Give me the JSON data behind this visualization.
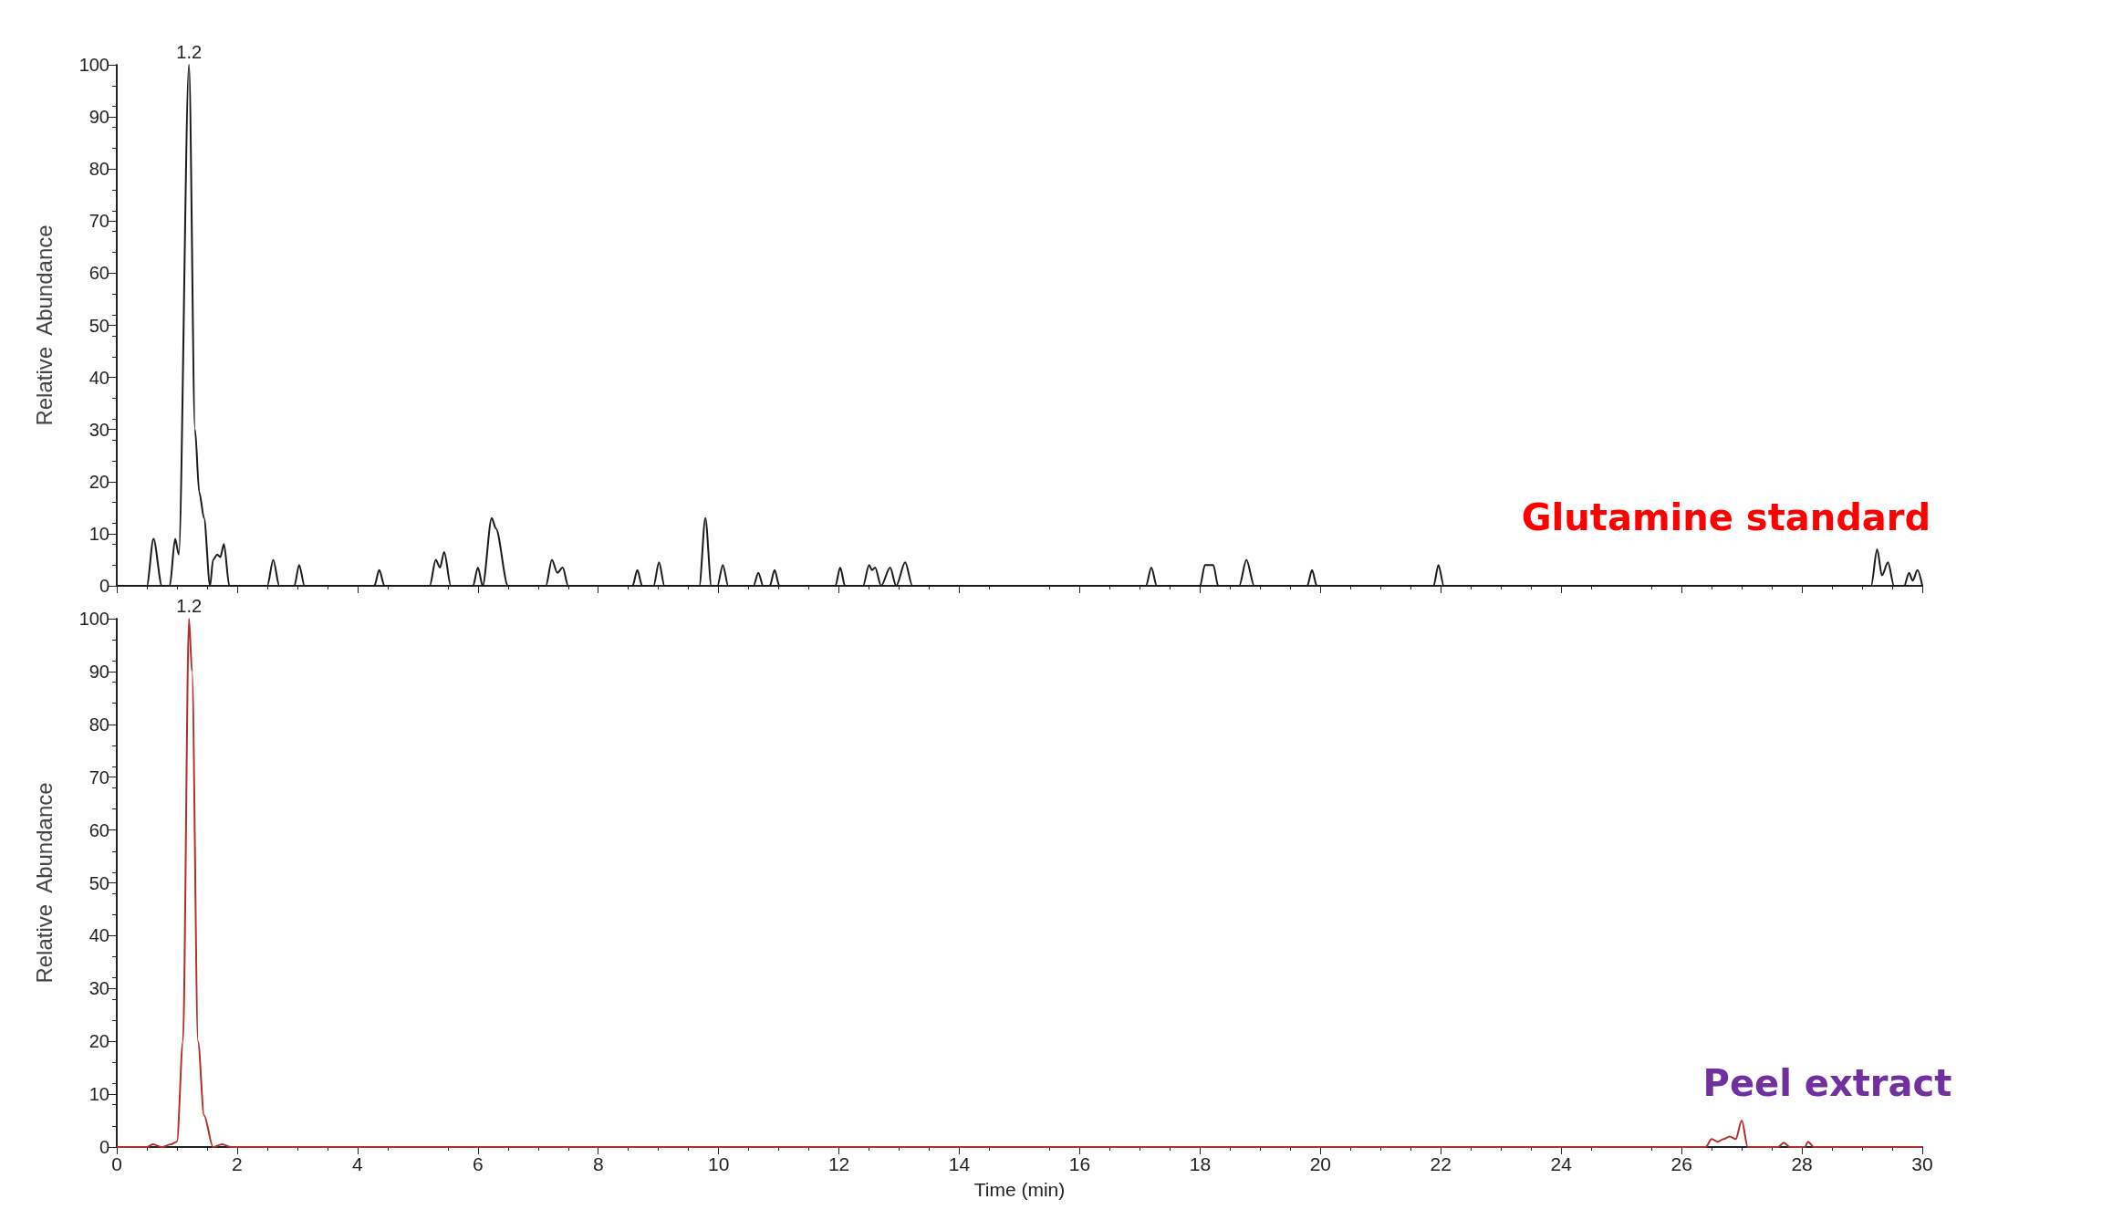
{
  "chart_data": [
    {
      "type": "line",
      "ylabel": "Relative  Abundance",
      "xlim": [
        0,
        30
      ],
      "xticks": [
        0,
        2,
        4,
        6,
        8,
        10,
        12,
        14,
        16,
        18,
        20,
        22,
        24,
        26,
        28,
        30
      ],
      "ylim": [
        0,
        100
      ],
      "yticks": [
        0,
        10,
        20,
        30,
        40,
        50,
        60,
        70,
        80,
        90,
        100
      ],
      "tick_labels": "y",
      "grid": false,
      "marker": "none",
      "line_style": "solid",
      "annotations": [
        {
          "text": "1.2",
          "x": 1.2,
          "y": 100
        },
        "Glutamine standard"
      ],
      "series": [
        {
          "color": "#1a1a1a",
          "x": [
            0,
            0.5,
            0.61,
            0.75,
            0.88,
            0.97,
            1.03,
            1.2,
            1.3,
            1.37,
            1.45,
            1.55,
            1.6,
            1.67,
            1.72,
            1.78,
            1.87,
            2.5,
            2.6,
            2.7,
            2.95,
            3.03,
            3.12,
            4.28,
            4.36,
            4.45,
            5.2,
            5.3,
            5.37,
            5.44,
            5.55,
            5.92,
            6.0,
            6.08,
            6.23,
            6.3,
            6.5,
            7.13,
            7.23,
            7.32,
            7.41,
            7.5,
            8.57,
            8.65,
            8.73,
            8.92,
            9.01,
            9.1,
            9.68,
            9.78,
            9.88,
            9.98,
            10.07,
            10.16,
            10.58,
            10.66,
            10.74,
            10.85,
            10.93,
            11.01,
            11.94,
            12.02,
            12.1,
            12.4,
            12.5,
            12.55,
            12.6,
            12.7,
            12.85,
            12.95,
            13.1,
            13.22,
            17.1,
            17.19,
            17.28,
            18.0,
            18.08,
            18.22,
            18.3,
            18.65,
            18.77,
            18.9,
            19.78,
            19.86,
            19.94,
            21.88,
            21.96,
            22.05,
            29.15,
            29.25,
            29.33,
            29.43,
            29.53,
            29.7,
            29.78,
            29.84,
            29.92,
            30
          ],
          "values": [
            0,
            0,
            9,
            0,
            0,
            9,
            6,
            100,
            30,
            18,
            13,
            0,
            5,
            6,
            5.5,
            8,
            0,
            0,
            5,
            0,
            0,
            4,
            0,
            0,
            3,
            0,
            0,
            5,
            3.5,
            6.5,
            0,
            0,
            3.5,
            0,
            13,
            11,
            0,
            0,
            5,
            2.5,
            3.5,
            0,
            0,
            3,
            0,
            0,
            4.5,
            0,
            0,
            13,
            0,
            0,
            4,
            0,
            0,
            2.5,
            0,
            0,
            3,
            0,
            0,
            3.5,
            0,
            0,
            4,
            3,
            3.5,
            0,
            3.5,
            0,
            4.5,
            0,
            0,
            3.5,
            0,
            0,
            4,
            4,
            0,
            0,
            5,
            0,
            0,
            3,
            0,
            0,
            4,
            0,
            0,
            7,
            2,
            4.5,
            0,
            0,
            2.5,
            1,
            3,
            0
          ]
        }
      ]
    },
    {
      "type": "line",
      "xlabel": "Time (min)",
      "ylabel": "Relative  Abundance",
      "xlim": [
        0,
        30
      ],
      "xticks": [
        0,
        2,
        4,
        6,
        8,
        10,
        12,
        14,
        16,
        18,
        20,
        22,
        24,
        26,
        28,
        30
      ],
      "ylim": [
        0,
        100
      ],
      "yticks": [
        0,
        10,
        20,
        30,
        40,
        50,
        60,
        70,
        80,
        90,
        100
      ],
      "grid": false,
      "marker": "none",
      "line_style": "solid",
      "annotations": [
        {
          "text": "1.2",
          "x": 1.2,
          "y": 100
        },
        "Peel extract"
      ],
      "series": [
        {
          "color": "#b03030",
          "x": [
            0,
            0.5,
            0.6,
            0.75,
            0.9,
            1.0,
            1.1,
            1.2,
            1.25,
            1.35,
            1.45,
            1.6,
            1.75,
            1.9,
            26.4,
            26.5,
            26.6,
            26.7,
            26.8,
            26.9,
            27.0,
            27.1,
            27.6,
            27.7,
            27.8,
            28.05,
            28.1,
            28.2,
            30
          ],
          "values": [
            0,
            0,
            0.5,
            0,
            0.5,
            1,
            20,
            100,
            90,
            20,
            6,
            0,
            0.5,
            0,
            0,
            1.5,
            1,
            1.5,
            2,
            1.5,
            5,
            0,
            0,
            0.8,
            0,
            0,
            1,
            0,
            0
          ]
        }
      ]
    }
  ]
}
